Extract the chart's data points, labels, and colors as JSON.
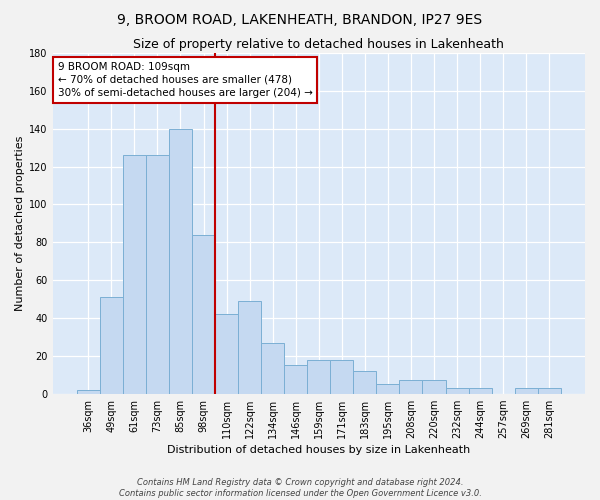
{
  "title": "9, BROOM ROAD, LAKENHEATH, BRANDON, IP27 9ES",
  "subtitle": "Size of property relative to detached houses in Lakenheath",
  "xlabel": "Distribution of detached houses by size in Lakenheath",
  "ylabel": "Number of detached properties",
  "categories": [
    "36sqm",
    "49sqm",
    "61sqm",
    "73sqm",
    "85sqm",
    "98sqm",
    "110sqm",
    "122sqm",
    "134sqm",
    "146sqm",
    "159sqm",
    "171sqm",
    "183sqm",
    "195sqm",
    "208sqm",
    "220sqm",
    "232sqm",
    "244sqm",
    "257sqm",
    "269sqm",
    "281sqm"
  ],
  "values": [
    2,
    51,
    126,
    126,
    140,
    84,
    42,
    49,
    27,
    15,
    18,
    18,
    12,
    5,
    7,
    7,
    3,
    3,
    0,
    3,
    3
  ],
  "bar_color": "#c5d9f1",
  "bar_edge_color": "#7bafd4",
  "ylim_max": 180,
  "yticks": [
    0,
    20,
    40,
    60,
    80,
    100,
    120,
    140,
    160,
    180
  ],
  "annotation_text": "9 BROOM ROAD: 109sqm\n← 70% of detached houses are smaller (478)\n30% of semi-detached houses are larger (204) →",
  "vline_x": 5.5,
  "vline_color": "#c00000",
  "box_edge_color": "#c00000",
  "footer1": "Contains HM Land Registry data © Crown copyright and database right 2024.",
  "footer2": "Contains public sector information licensed under the Open Government Licence v3.0.",
  "plot_bg_color": "#dce9f8",
  "fig_bg_color": "#f2f2f2",
  "grid_color": "#ffffff",
  "title_fontsize": 10,
  "subtitle_fontsize": 9,
  "axis_label_fontsize": 8,
  "tick_fontsize": 7,
  "annotation_fontsize": 7.5,
  "footer_fontsize": 6
}
